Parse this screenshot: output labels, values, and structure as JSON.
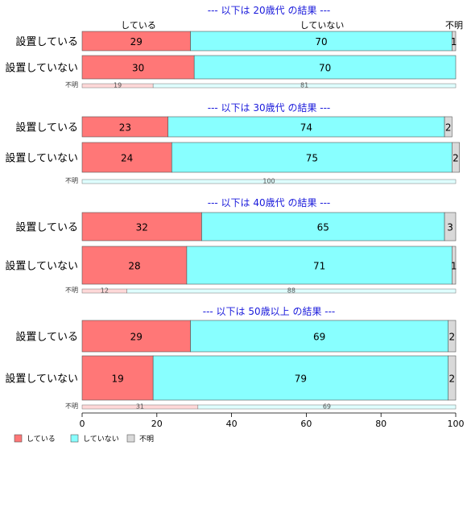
{
  "chart_data": {
    "type": "bar",
    "stacked": true,
    "orientation": "horizontal",
    "column_headers": [
      "している",
      "していない",
      "不明"
    ],
    "series": [
      {
        "name": "している",
        "color": "#ff7777"
      },
      {
        "name": "していない",
        "color": "#88ffff"
      },
      {
        "name": "不明",
        "color": "#d9d9d9"
      }
    ],
    "xlim": [
      0,
      100
    ],
    "x_ticks": [
      0,
      20,
      40,
      60,
      80,
      100
    ],
    "grid": false,
    "legend_position": "bottom-left",
    "panels": [
      {
        "title": "--- 以下は 20歳代 の結果 ---",
        "rows": [
          {
            "label": "設置している",
            "values": [
              29,
              70,
              1
            ]
          },
          {
            "label": "設置していない",
            "values": [
              30,
              70,
              0
            ]
          }
        ],
        "unknown": {
          "label": "不明",
          "values": [
            19,
            81,
            0
          ]
        }
      },
      {
        "title": "--- 以下は 30歳代 の結果 ---",
        "rows": [
          {
            "label": "設置している",
            "values": [
              23,
              74,
              2
            ]
          },
          {
            "label": "設置していない",
            "values": [
              24,
              75,
              2
            ]
          }
        ],
        "unknown": {
          "label": "不明",
          "values": [
            0,
            100,
            0
          ]
        }
      },
      {
        "title": "--- 以下は 40歳代 の結果 ---",
        "rows": [
          {
            "label": "設置している",
            "values": [
              32,
              65,
              3
            ]
          },
          {
            "label": "設置していない",
            "values": [
              28,
              71,
              1
            ]
          }
        ],
        "unknown": {
          "label": "不明",
          "values": [
            12,
            88,
            0
          ]
        }
      },
      {
        "title": "--- 以下は 50歳以上 の結果 ---",
        "rows": [
          {
            "label": "設置している",
            "values": [
              29,
              69,
              2
            ]
          },
          {
            "label": "設置していない",
            "values": [
              19,
              79,
              2
            ]
          }
        ],
        "unknown": {
          "label": "不明",
          "values": [
            31,
            69,
            0
          ]
        }
      }
    ]
  }
}
